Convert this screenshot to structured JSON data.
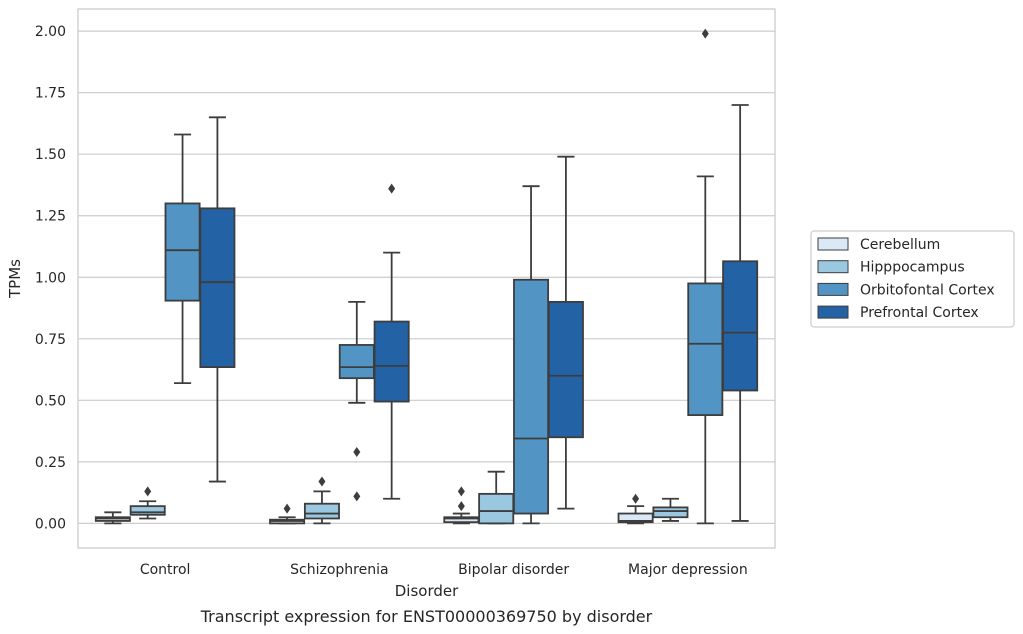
{
  "chart_data": {
    "type": "boxplot",
    "caption": "Transcript expression for ENST00000369750 by disorder",
    "xlabel": "Disorder",
    "ylabel": "TPMs",
    "ylim": [
      -0.1,
      2.09
    ],
    "yticks": [
      0.0,
      0.25,
      0.5,
      0.75,
      1.0,
      1.25,
      1.5,
      1.75,
      2.0
    ],
    "ytick_labels": [
      "0.00",
      "0.25",
      "0.50",
      "0.75",
      "1.00",
      "1.25",
      "1.50",
      "1.75",
      "2.00"
    ],
    "grid": true,
    "legend_position": "right",
    "categories": [
      "Control",
      "Schizophrenia",
      "Bipolar disorder",
      "Major depression"
    ],
    "series": [
      {
        "name": "Cerebellum",
        "color": "#dbe9f6",
        "boxes": [
          {
            "whislo": 0.0,
            "q1": 0.01,
            "med": 0.02,
            "q3": 0.025,
            "whishi": 0.045,
            "fliers": []
          },
          {
            "whislo": 0.0,
            "q1": 0.0,
            "med": 0.01,
            "q3": 0.015,
            "whishi": 0.025,
            "fliers": [
              0.06
            ]
          },
          {
            "whislo": 0.0,
            "q1": 0.005,
            "med": 0.02,
            "q3": 0.025,
            "whishi": 0.04,
            "fliers": [
              0.07,
              0.13
            ]
          },
          {
            "whislo": 0.0,
            "q1": 0.005,
            "med": 0.01,
            "q3": 0.04,
            "whishi": 0.07,
            "fliers": [
              0.1
            ]
          }
        ]
      },
      {
        "name": "Hipppocampus",
        "color": "#9ac8e0",
        "boxes": [
          {
            "whislo": 0.02,
            "q1": 0.035,
            "med": 0.045,
            "q3": 0.07,
            "whishi": 0.09,
            "fliers": [
              0.13
            ]
          },
          {
            "whislo": 0.0,
            "q1": 0.02,
            "med": 0.04,
            "q3": 0.08,
            "whishi": 0.13,
            "fliers": [
              0.17
            ]
          },
          {
            "whislo": 0.0,
            "q1": 0.0,
            "med": 0.05,
            "q3": 0.12,
            "whishi": 0.21,
            "fliers": []
          },
          {
            "whislo": 0.01,
            "q1": 0.025,
            "med": 0.05,
            "q3": 0.065,
            "whishi": 0.1,
            "fliers": []
          }
        ]
      },
      {
        "name": "Orbitofontal Cortex",
        "color": "#5294c3",
        "boxes": [
          {
            "whislo": 0.57,
            "q1": 0.905,
            "med": 1.11,
            "q3": 1.3,
            "whishi": 1.58,
            "fliers": []
          },
          {
            "whislo": 0.49,
            "q1": 0.59,
            "med": 0.635,
            "q3": 0.725,
            "whishi": 0.9,
            "fliers": [
              0.29,
              0.11
            ]
          },
          {
            "whislo": 0.0,
            "q1": 0.04,
            "med": 0.345,
            "q3": 0.99,
            "whishi": 1.37,
            "fliers": []
          },
          {
            "whislo": 0.0,
            "q1": 0.44,
            "med": 0.73,
            "q3": 0.975,
            "whishi": 1.41,
            "fliers": [
              1.99
            ]
          }
        ]
      },
      {
        "name": "Prefrontal Cortex",
        "color": "#2363a5",
        "boxes": [
          {
            "whislo": 0.17,
            "q1": 0.635,
            "med": 0.98,
            "q3": 1.28,
            "whishi": 1.65,
            "fliers": []
          },
          {
            "whislo": 0.1,
            "q1": 0.495,
            "med": 0.64,
            "q3": 0.82,
            "whishi": 1.1,
            "fliers": [
              1.36
            ]
          },
          {
            "whislo": 0.06,
            "q1": 0.35,
            "med": 0.6,
            "q3": 0.9,
            "whishi": 1.49,
            "fliers": []
          },
          {
            "whislo": 0.01,
            "q1": 0.54,
            "med": 0.775,
            "q3": 1.065,
            "whishi": 1.7,
            "fliers": []
          }
        ]
      }
    ]
  },
  "colors": {
    "grid": "#cccccc",
    "frame": "#cccccc",
    "line": "#3d3d3d",
    "text": "#262626"
  }
}
